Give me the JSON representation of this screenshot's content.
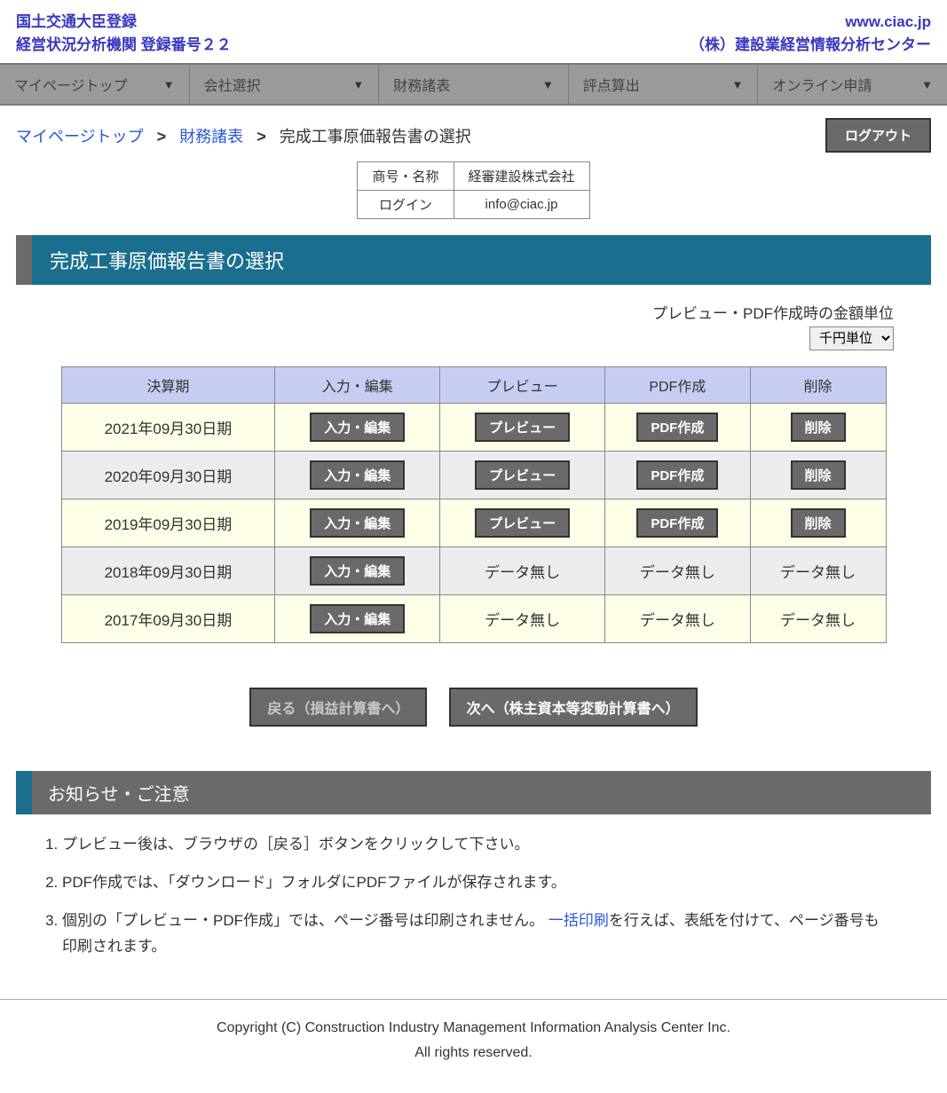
{
  "header": {
    "left_line1": "国土交通大臣登録",
    "left_line2": "経営状況分析機関 登録番号２２",
    "right_line1": "www.ciac.jp",
    "right_line2": "（株）建設業経営情報分析センター"
  },
  "nav": {
    "items": [
      {
        "label": "マイページトップ"
      },
      {
        "label": "会社選択"
      },
      {
        "label": "財務諸表"
      },
      {
        "label": "評点算出"
      },
      {
        "label": "オンライン申請"
      }
    ]
  },
  "breadcrumb": {
    "top": "マイページトップ",
    "mid": "財務諸表",
    "current": "完成工事原価報告書の選択"
  },
  "logout": "ログアウト",
  "info": {
    "name_label": "商号・名称",
    "name_value": "経審建設株式会社",
    "login_label": "ログイン",
    "login_value": "info@ciac.jp"
  },
  "section_title": "完成工事原価報告書の選択",
  "unit": {
    "label": "プレビュー・PDF作成時の金額単位",
    "selected": "千円単位"
  },
  "table": {
    "headers": [
      "決算期",
      "入力・編集",
      "プレビュー",
      "PDF作成",
      "削除"
    ],
    "buttons": {
      "edit": "入力・編集",
      "preview": "プレビュー",
      "pdf": "PDF作成",
      "delete": "削除"
    },
    "no_data": "データ無し",
    "rows": [
      {
        "period": "2021年09月30日期",
        "has_data": true
      },
      {
        "period": "2020年09月30日期",
        "has_data": true
      },
      {
        "period": "2019年09月30日期",
        "has_data": true
      },
      {
        "period": "2018年09月30日期",
        "has_data": false
      },
      {
        "period": "2017年09月30日期",
        "has_data": false
      }
    ]
  },
  "nav_buttons": {
    "back": "戻る（損益計算書へ）",
    "next": "次へ（株主資本等変動計算書へ）"
  },
  "notice": {
    "title": "お知らせ・ご注意",
    "items": [
      {
        "text": "プレビュー後は、ブラウザの［戻る］ボタンをクリックして下さい。"
      },
      {
        "text": "PDF作成では、「ダウンロード」フォルダにPDFファイルが保存されます。"
      },
      {
        "text_before": "個別の「プレビュー・PDF作成」では、ページ番号は印刷されません。 ",
        "link": "一括印刷",
        "text_after": "を行えば、表紙を付けて、ページ番号も印刷されます。"
      }
    ]
  },
  "footer": {
    "line1": "Copyright (C) Construction Industry Management Information Analysis Center Inc.",
    "line2": "All rights reserved."
  }
}
